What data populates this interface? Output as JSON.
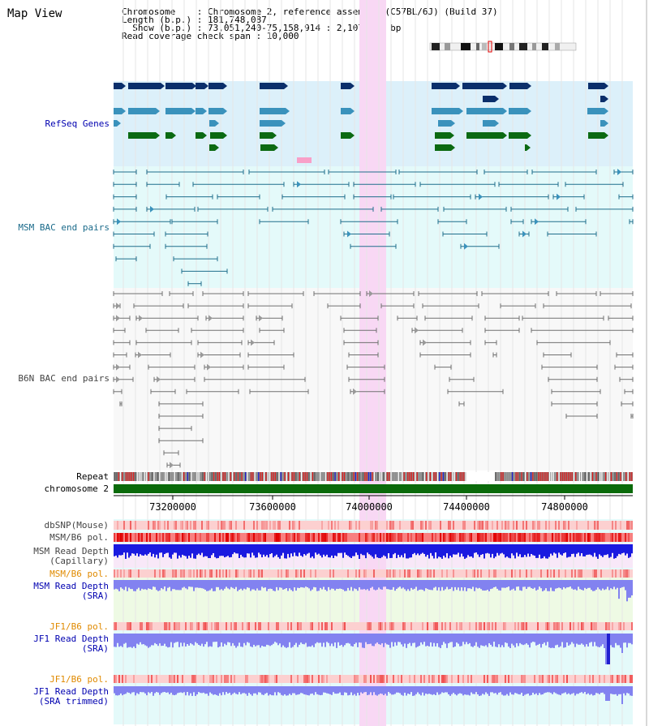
{
  "view_title": "Map View",
  "info": {
    "chromosome": "Chromosome    : Chromosome 2, reference assembly (C57BL/6J) (Build 37)",
    "length": "Length (b.p.) : 181,748,087",
    "show": "  Show (b.p.) : 73,051,240-75,158,914 : 2,107,675 bp",
    "coverage": "Read coverage check span : 10,000"
  },
  "tracks": {
    "refseq": "RefSeq Genes",
    "msm_bac": "MSM BAC end pairs",
    "b6n_bac": "B6N BAC end pairs",
    "repeat": "Repeat",
    "chromosome": "chromosome 2",
    "dbsnp": "dbSNP(Mouse)",
    "msm_pol": "MSM/B6 pol.",
    "msm_cap_1": "MSM Read Depth",
    "msm_cap_2": "(Capillary)",
    "msm_pol2": "MSM/B6 pol.",
    "msm_sra_1": "MSM Read Depth",
    "msm_sra_2": "(SRA)",
    "jf1_pol": "JF1/B6 pol.",
    "jf1_sra_1": "JF1 Read Depth",
    "jf1_sra_2": "(SRA)",
    "jf1_pol2": "JF1/B6 pol.",
    "jf1_trim_1": "JF1 Read Depth",
    "jf1_trim_2": "(SRA trimmed)"
  },
  "axis_ticks": [
    "73200000",
    "73600000",
    "74000000",
    "74400000",
    "74800000"
  ],
  "colors": {
    "refseq_bg": "#dcf0fa",
    "bac_bg": "#e4fafa",
    "highlight": "#f8d8f4",
    "msm_bac": "#1f6e8c",
    "b6n_bac": "#707070",
    "dark_blue_gene": "#0b2f6b",
    "mid_blue_gene": "#3a92bc",
    "green_gene": "#0b6a12",
    "chromosome_bar": "#0a6a0a",
    "depth_blue": "#1a1ae0",
    "depth_light": "#8282f0",
    "pol_red": "#f04040",
    "label_blue": "#0000b0",
    "label_orange": "#e08a00",
    "label_teal": "#1a6a8a"
  }
}
